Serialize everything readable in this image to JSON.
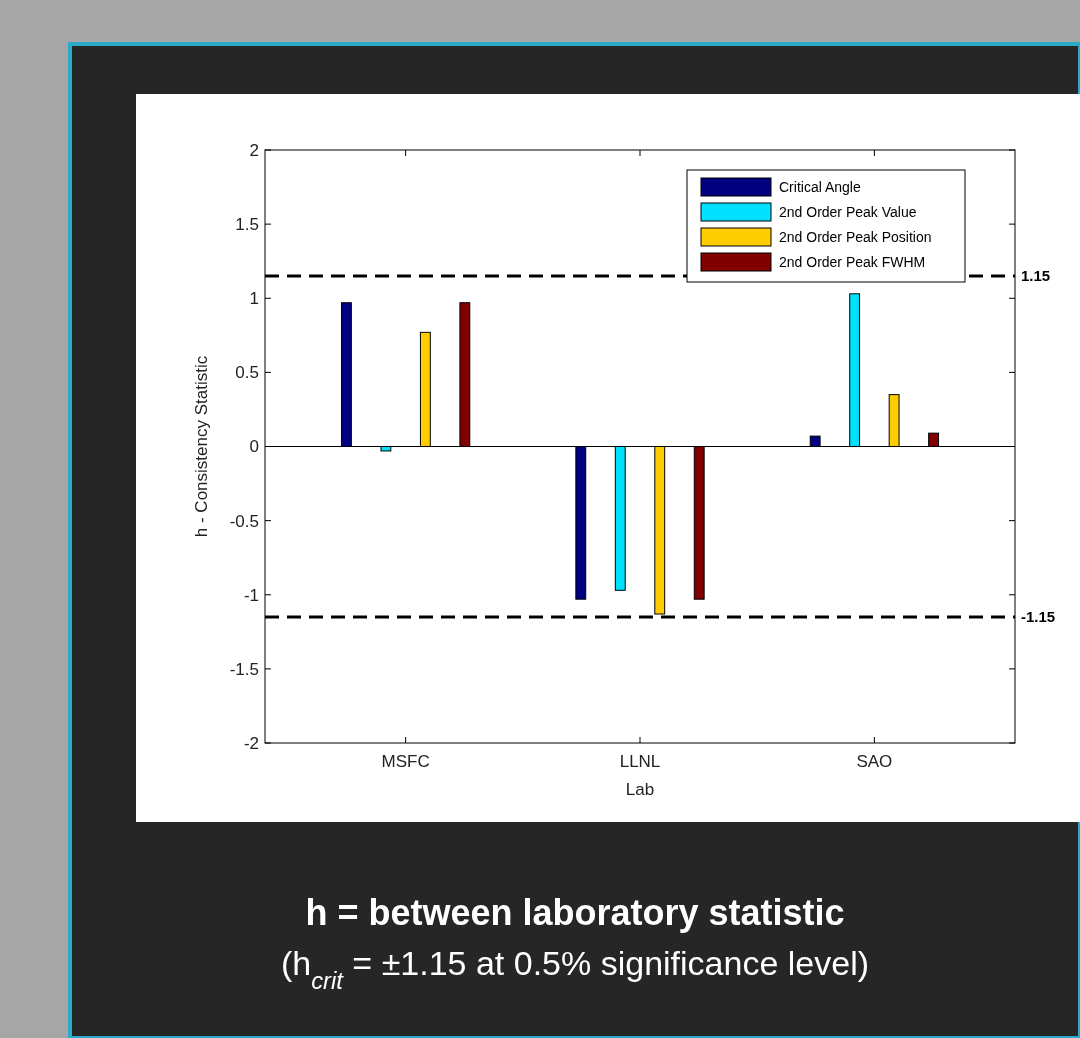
{
  "chart_data": {
    "type": "bar",
    "xlabel": "Lab",
    "ylabel": "h - Consistency Statistic",
    "categories": [
      "MSFC",
      "LLNL",
      "SAO"
    ],
    "series": [
      {
        "name": "Critical Angle",
        "color": "#000080",
        "values": [
          0.97,
          -1.03,
          0.07
        ]
      },
      {
        "name": "2nd Order Peak Value",
        "color": "#00e0ff",
        "values": [
          -0.03,
          -0.97,
          1.03
        ]
      },
      {
        "name": "2nd Order Peak Position",
        "color": "#ffcc00",
        "values": [
          0.77,
          -1.13,
          0.35
        ]
      },
      {
        "name": "2nd Order Peak FWHM",
        "color": "#800000",
        "values": [
          0.97,
          -1.03,
          0.09
        ]
      }
    ],
    "ylim": [
      -2,
      2
    ],
    "yticks": [
      -2,
      -1.5,
      -1,
      -0.5,
      0,
      0.5,
      1,
      1.5,
      2
    ],
    "ref_lines": [
      {
        "axis": "y",
        "value": 1.15,
        "label": "1.15",
        "color": "#000000",
        "line_style": "dashed"
      },
      {
        "axis": "y",
        "value": -1.15,
        "label": "-1.15",
        "color": "#000000",
        "line_style": "dashed"
      }
    ],
    "legend": "top right",
    "annotations": [
      "h = between laboratory statistic",
      "(h$_{crit}$ = ±1.15 at 0.5% significance level)"
    ]
  }
}
